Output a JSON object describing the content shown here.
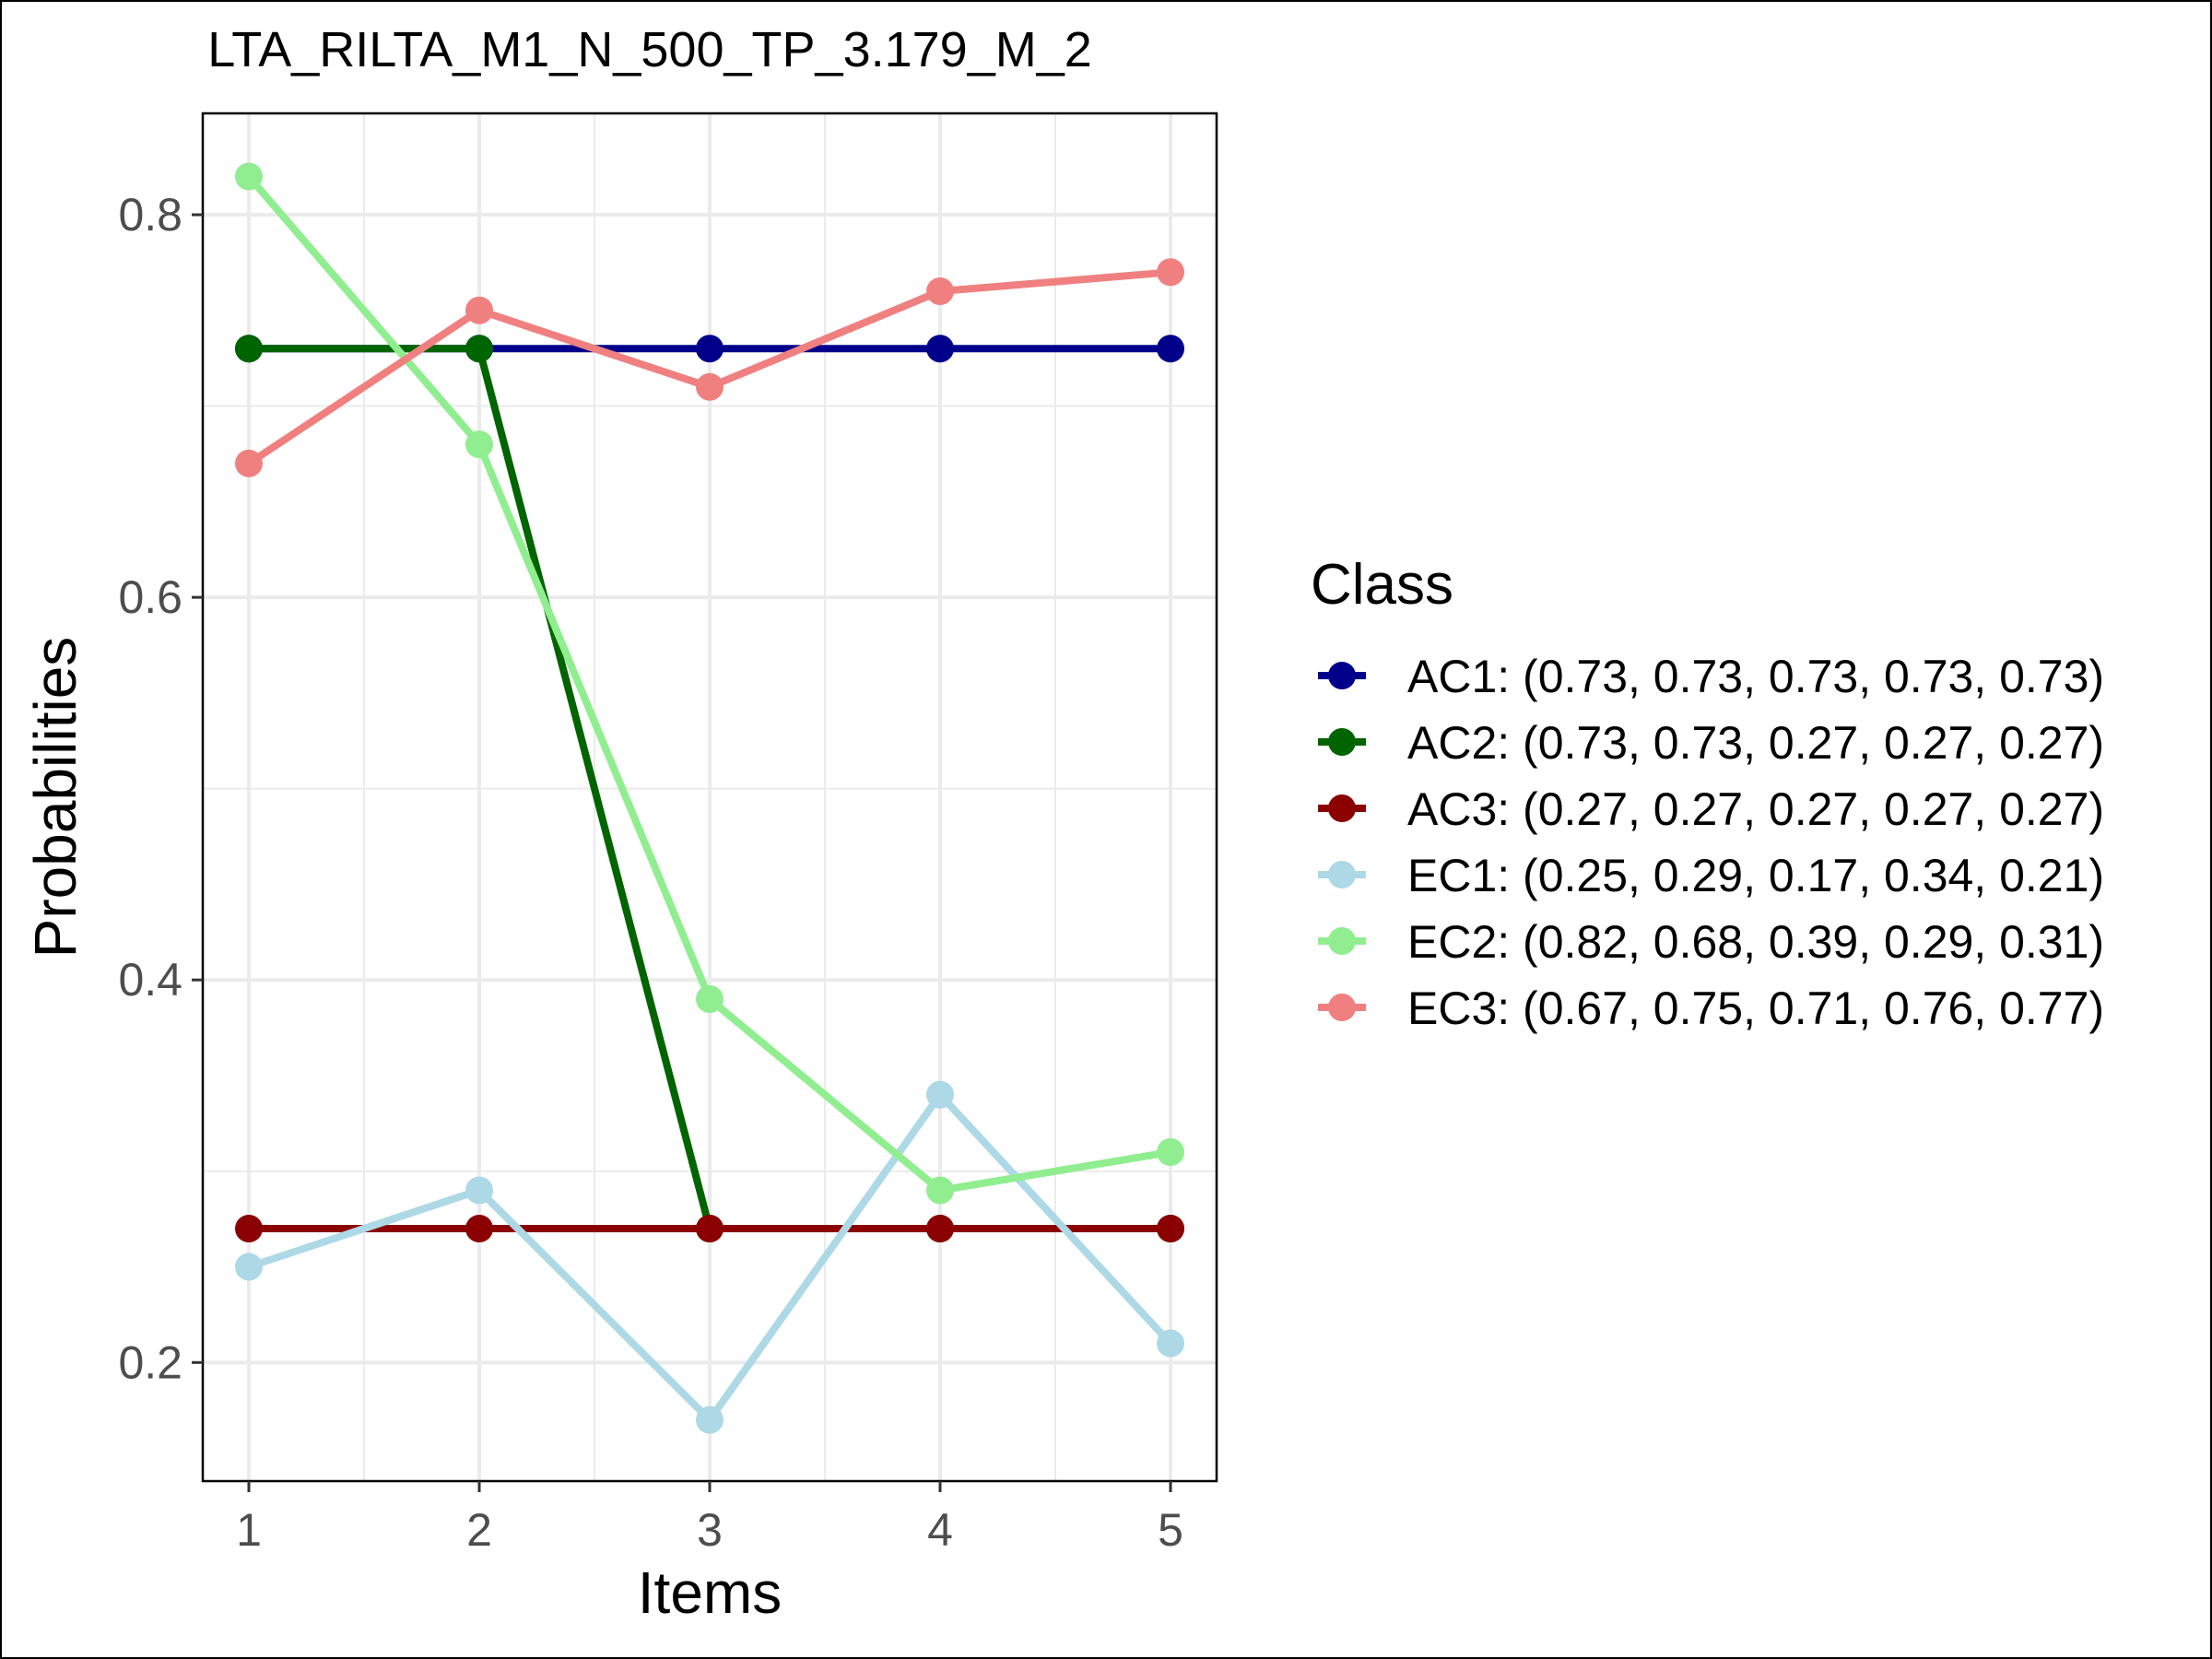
{
  "chart_data": {
    "type": "line",
    "title": "LTA_RILTA_M1_N_500_TP_3.179_M_2",
    "xlabel": "Items",
    "ylabel": "Probabilities",
    "x": [
      1,
      2,
      3,
      4,
      5
    ],
    "x_tick_labels": [
      "1",
      "2",
      "3",
      "4",
      "5"
    ],
    "y_ticks": [
      0.2,
      0.4,
      0.6,
      0.8
    ],
    "y_tick_labels": [
      "0.2",
      "0.4",
      "0.6",
      "0.8"
    ],
    "xlim": [
      0.8,
      5.2
    ],
    "ylim": [
      0.138,
      0.853
    ],
    "grid": true,
    "legend": {
      "title": "Class",
      "position": "right"
    },
    "series": [
      {
        "name": "AC1",
        "label": "AC1: (0.73, 0.73, 0.73, 0.73, 0.73)",
        "color": "#00008b",
        "values": [
          0.73,
          0.73,
          0.73,
          0.73,
          0.73
        ]
      },
      {
        "name": "AC2",
        "label": "AC2: (0.73, 0.73, 0.27, 0.27, 0.27)",
        "color": "#006400",
        "values": [
          0.73,
          0.73,
          0.27,
          0.27,
          0.27
        ]
      },
      {
        "name": "AC3",
        "label": "AC3: (0.27, 0.27, 0.27, 0.27, 0.27)",
        "color": "#8b0000",
        "values": [
          0.27,
          0.27,
          0.27,
          0.27,
          0.27
        ]
      },
      {
        "name": "EC1",
        "label": "EC1: (0.25, 0.29, 0.17, 0.34, 0.21)",
        "color": "#add8e6",
        "values": [
          0.25,
          0.29,
          0.17,
          0.34,
          0.21
        ]
      },
      {
        "name": "EC2",
        "label": "EC2: (0.82, 0.68, 0.39, 0.29, 0.31)",
        "color": "#90ee90",
        "values": [
          0.82,
          0.68,
          0.39,
          0.29,
          0.31
        ]
      },
      {
        "name": "EC3",
        "label": "EC3: (0.67, 0.75, 0.71, 0.76, 0.77)",
        "color": "#f08080",
        "values": [
          0.67,
          0.75,
          0.71,
          0.76,
          0.77
        ]
      }
    ]
  }
}
